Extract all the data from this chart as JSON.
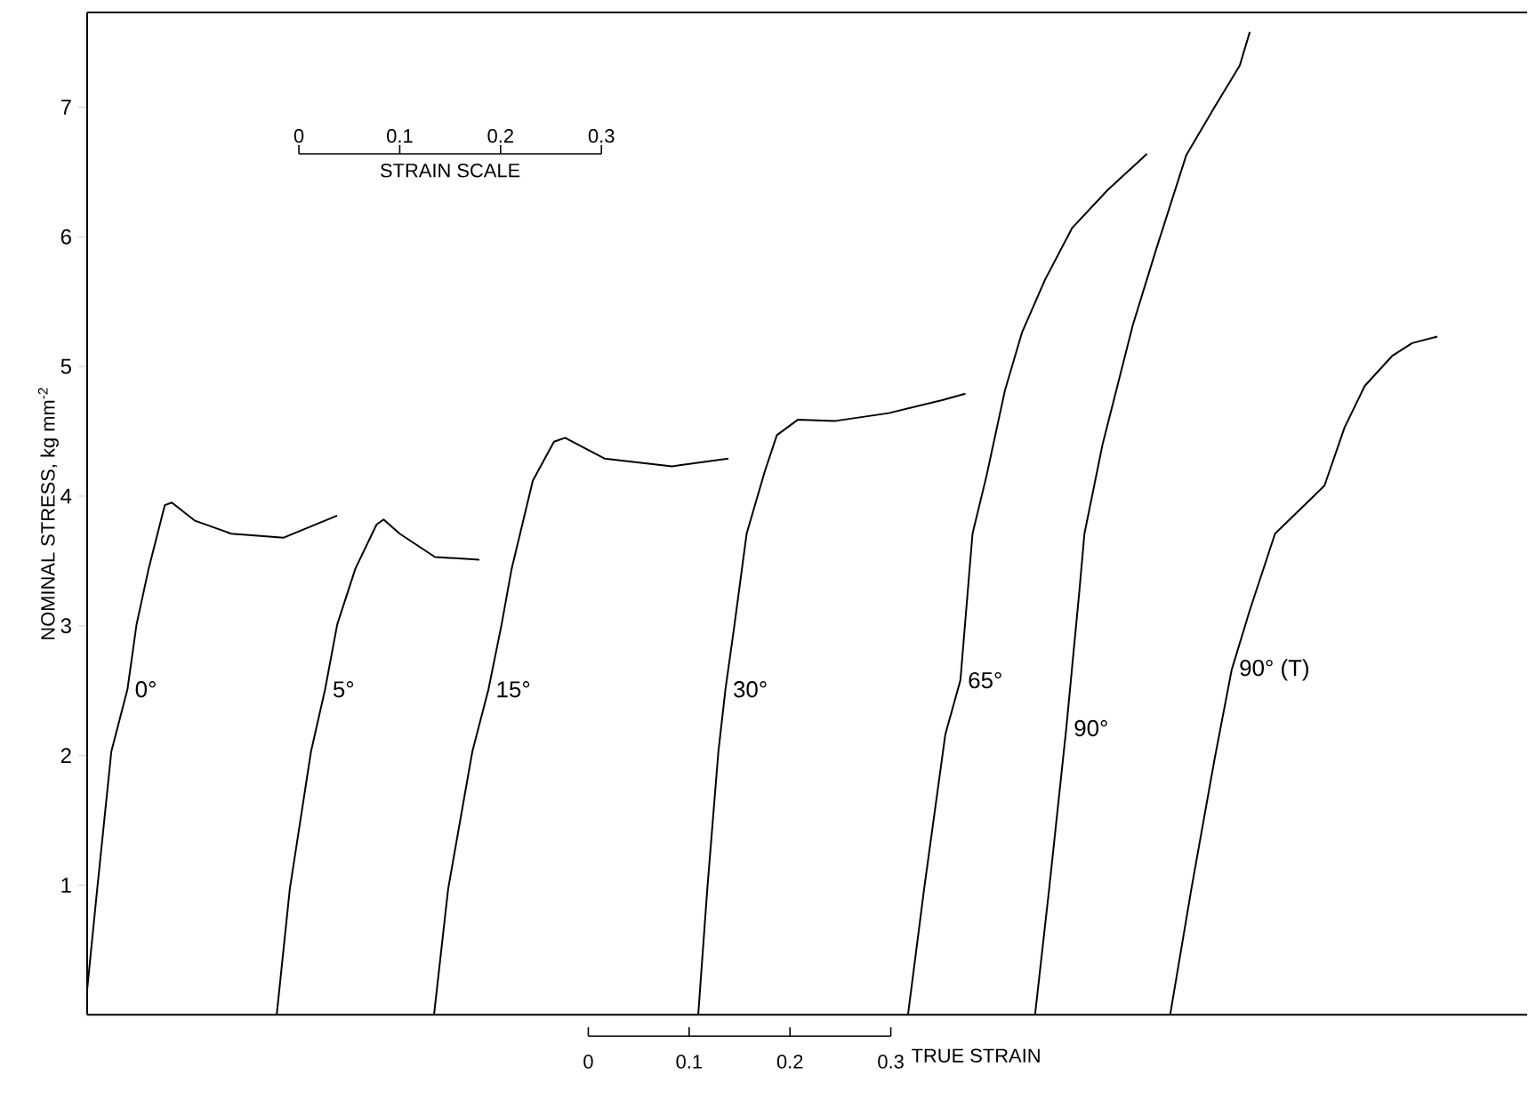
{
  "chart_data": {
    "type": "line",
    "xlabel": "TRUE STRAIN",
    "ylabel": "NOMINAL STRESS, kg mm$^{-2}$",
    "xlim": [
      -0.497,
      0.931
    ],
    "ylim": [
      0,
      7.73
    ],
    "xticks": [
      0,
      0.1,
      0.2,
      0.3
    ],
    "yticks": [
      1,
      2,
      3,
      4,
      5,
      6,
      7
    ],
    "marker": "none",
    "line_style": "solid",
    "annotations": [
      "0",
      "0.1",
      "0.2",
      "0.3",
      "STRAIN SCALE"
    ],
    "series": [
      {
        "name": "0°",
        "color": "#000000",
        "x": [
          -0.497,
          -0.487,
          -0.473,
          -0.457,
          -0.448,
          -0.436,
          -0.42,
          -0.413,
          -0.39,
          -0.354,
          -0.302,
          -0.249
        ],
        "values": [
          0.19,
          0.97,
          2.03,
          2.51,
          3.01,
          3.44,
          3.93,
          3.95,
          3.81,
          3.71,
          3.68,
          3.85
        ]
      },
      {
        "name": "5°",
        "color": "#000000",
        "x": [
          -0.309,
          -0.296,
          -0.275,
          -0.261,
          -0.249,
          -0.231,
          -0.21,
          -0.203,
          -0.187,
          -0.152,
          -0.108
        ],
        "values": [
          0,
          0.97,
          2.03,
          2.51,
          3.01,
          3.44,
          3.78,
          3.82,
          3.71,
          3.53,
          3.51
        ]
      },
      {
        "name": "15°",
        "color": "#000000",
        "x": [
          -0.153,
          -0.139,
          -0.115,
          -0.099,
          -0.086,
          -0.076,
          -0.055,
          -0.034,
          -0.023,
          0.016,
          0.083,
          0.139
        ],
        "values": [
          0,
          0.97,
          2.03,
          2.51,
          3.01,
          3.44,
          4.12,
          4.42,
          4.45,
          4.29,
          4.23,
          4.29
        ]
      },
      {
        "name": "30°",
        "color": "#000000",
        "x": [
          0.109,
          0.118,
          0.129,
          0.136,
          0.145,
          0.157,
          0.175,
          0.187,
          0.208,
          0.245,
          0.298,
          0.351,
          0.374
        ],
        "values": [
          0,
          0.97,
          2.03,
          2.51,
          3.01,
          3.71,
          4.19,
          4.47,
          4.59,
          4.58,
          4.64,
          4.74,
          4.79
        ]
      },
      {
        "name": "65°",
        "color": "#000000",
        "x": [
          0.317,
          0.333,
          0.354,
          0.369,
          0.381,
          0.395,
          0.413,
          0.43,
          0.453,
          0.48,
          0.515,
          0.554
        ],
        "values": [
          0,
          0.97,
          2.16,
          2.58,
          3.71,
          4.16,
          4.81,
          5.26,
          5.67,
          6.07,
          6.36,
          6.64
        ]
      },
      {
        "name": "90°",
        "color": "#000000",
        "x": [
          0.443,
          0.457,
          0.474,
          0.487,
          0.492,
          0.51,
          0.54,
          0.563,
          0.593,
          0.621,
          0.646,
          0.656
        ],
        "values": [
          0,
          0.97,
          2.21,
          3.27,
          3.71,
          4.4,
          5.32,
          5.9,
          6.63,
          7.0,
          7.32,
          7.58
        ]
      },
      {
        "name": "90° (T)",
        "color": "#000000",
        "x": [
          0.577,
          0.598,
          0.621,
          0.638,
          0.656,
          0.681,
          0.73,
          0.75,
          0.77,
          0.797,
          0.817,
          0.842
        ],
        "values": [
          0,
          0.97,
          1.97,
          2.66,
          3.12,
          3.71,
          4.08,
          4.53,
          4.85,
          5.08,
          5.18,
          5.23
        ]
      }
    ]
  }
}
